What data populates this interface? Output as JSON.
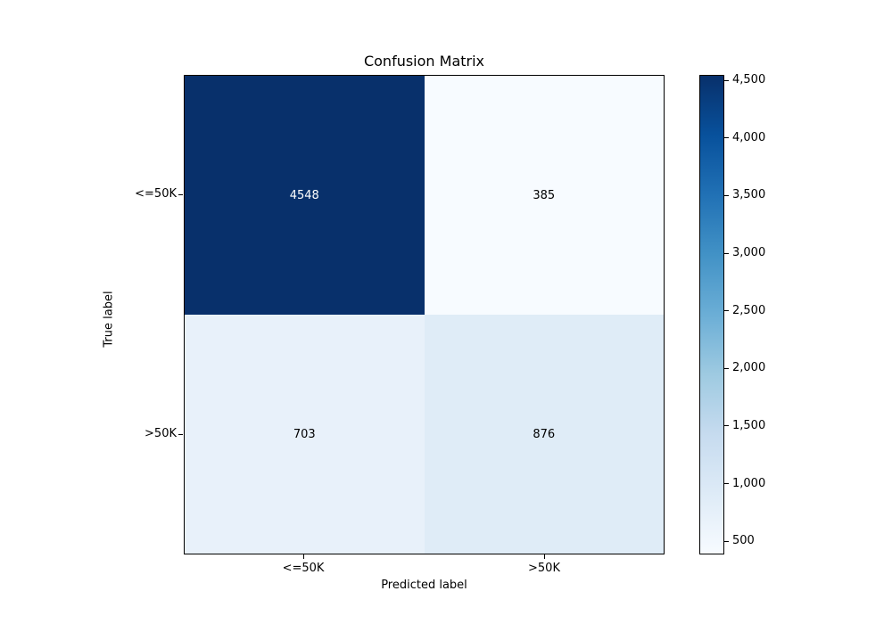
{
  "chart_data": {
    "type": "heatmap",
    "title": "Confusion Matrix",
    "xlabel": "Predicted label",
    "ylabel": "True label",
    "x_categories": [
      "<=50K",
      ">50K"
    ],
    "y_categories": [
      "<=50K",
      ">50K"
    ],
    "matrix": [
      [
        4548,
        385
      ],
      [
        703,
        876
      ]
    ],
    "cell_labels": [
      [
        "4548",
        "385"
      ],
      [
        "703",
        "876"
      ]
    ],
    "cell_colors": [
      [
        "#08306b",
        "#f7fbff"
      ],
      [
        "#e8f1fa",
        "#dfecf7"
      ]
    ],
    "cell_text_colors": [
      [
        "#ffffff",
        "#000000"
      ],
      [
        "#000000",
        "#000000"
      ]
    ],
    "colormap": "Blues",
    "vmin": 385,
    "vmax": 4548,
    "legend_position": "right-colorbar",
    "grid": false,
    "colorbar": {
      "ticks": [
        4500,
        4000,
        3500,
        3000,
        2500,
        2000,
        1500,
        1000,
        500
      ],
      "tick_labels": [
        "4,500",
        "4,000",
        "3,500",
        "3,000",
        "2,500",
        "2,000",
        "1,500",
        "1,000",
        "500"
      ],
      "gradient_stops_bottom_to_top": [
        "#f7fbff",
        "#deebf7",
        "#c6dbef",
        "#9ecae1",
        "#6baed6",
        "#4292c6",
        "#2171b5",
        "#08519c",
        "#08306b"
      ]
    }
  }
}
